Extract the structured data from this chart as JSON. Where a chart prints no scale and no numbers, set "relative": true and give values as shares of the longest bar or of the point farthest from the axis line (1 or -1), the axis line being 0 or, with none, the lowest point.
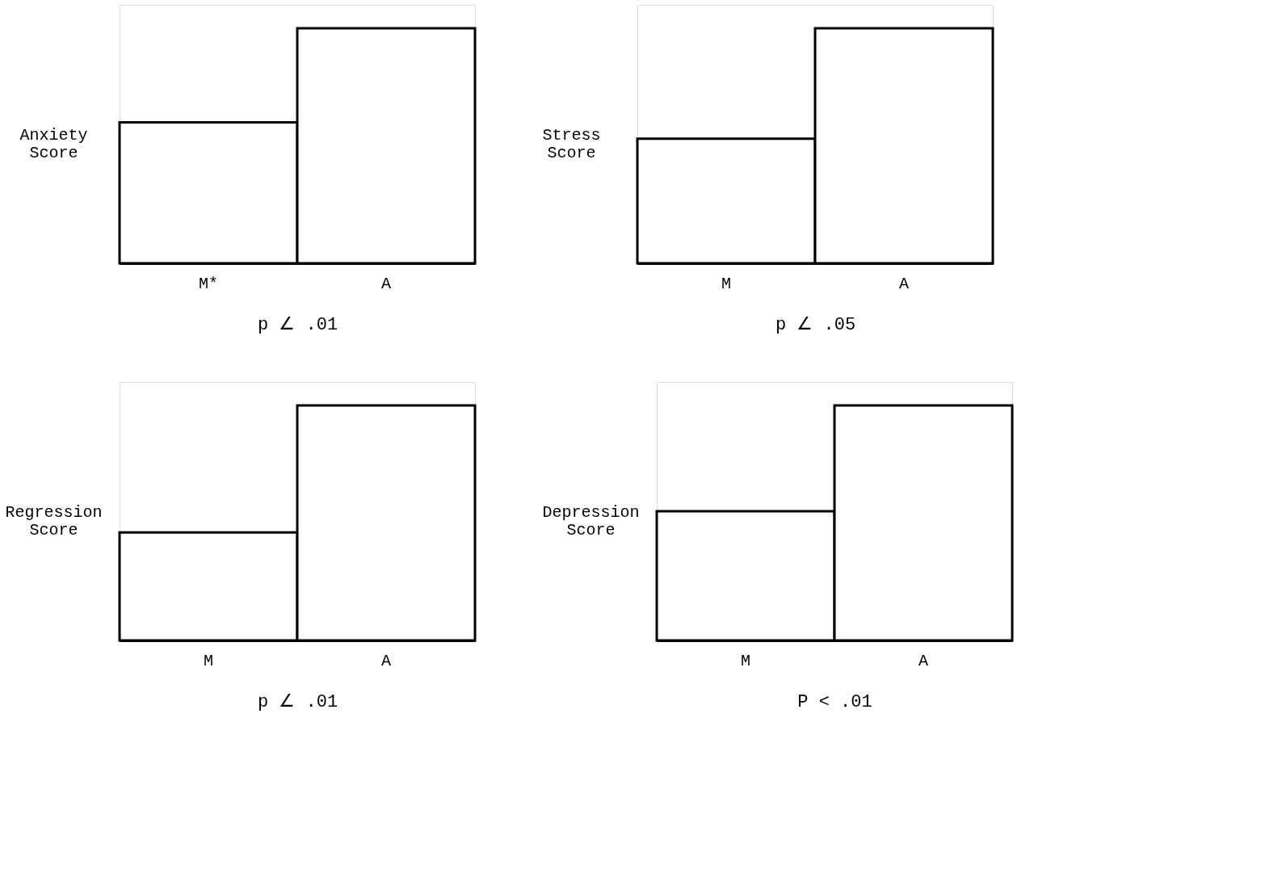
{
  "chart_data": [
    {
      "type": "bar",
      "relative": true,
      "ylabel": "Anxiety Score",
      "categories": [
        "M*",
        "A"
      ],
      "values": [
        0.6,
        1
      ],
      "color": "#ffffff",
      "annotations": [
        "p ∠ .01"
      ]
    },
    {
      "type": "bar",
      "relative": true,
      "ylabel": "Stress Score",
      "categories": [
        "M",
        "A"
      ],
      "values": [
        0.53,
        1
      ],
      "color": "#ffffff",
      "annotations": [
        "p ∠ .05"
      ]
    },
    {
      "type": "bar",
      "relative": true,
      "ylabel": "Regression Score",
      "categories": [
        "M",
        "A"
      ],
      "values": [
        0.46,
        1
      ],
      "color": "#ffffff",
      "annotations": [
        "p ∠ .01"
      ]
    },
    {
      "type": "bar",
      "relative": true,
      "ylabel": "Depression Score",
      "categories": [
        "M",
        "A"
      ],
      "values": [
        0.55,
        1
      ],
      "color": "#ffffff",
      "annotations": [
        "P < .01"
      ]
    }
  ]
}
